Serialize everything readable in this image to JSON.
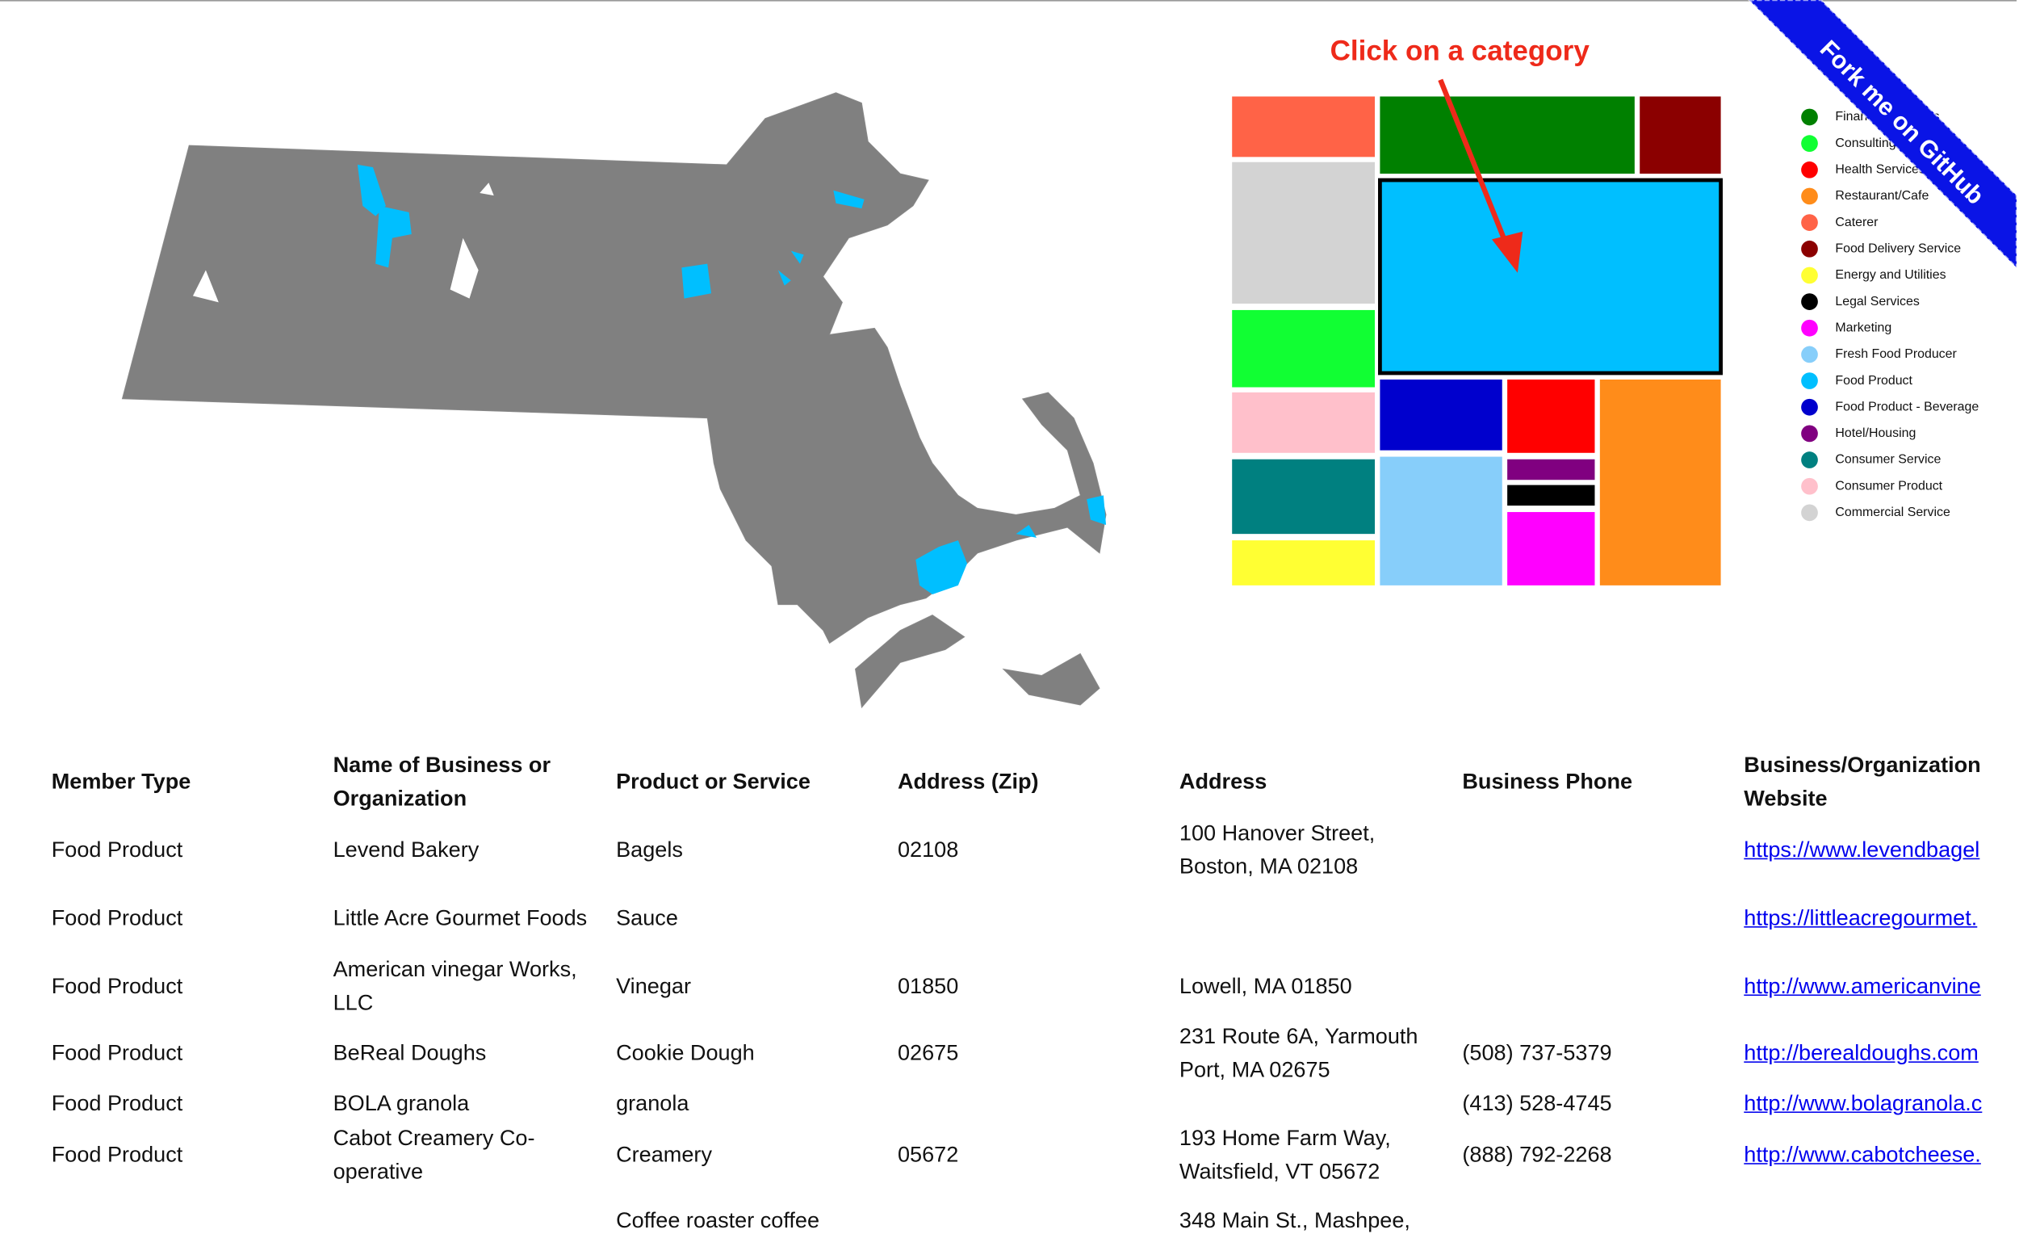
{
  "annotation": "Click on a category",
  "ribbon": "Fork me on GitHub",
  "legend": [
    {
      "label": "Financial Services",
      "color": "#008000"
    },
    {
      "label": "Consulting",
      "color": "#11ff33"
    },
    {
      "label": "Health Services",
      "color": "#ff0000"
    },
    {
      "label": "Restaurant/Cafe",
      "color": "#ff8c1a"
    },
    {
      "label": "Caterer",
      "color": "#ff6347"
    },
    {
      "label": "Food Delivery Service",
      "color": "#8b0000"
    },
    {
      "label": "Energy and Utilities",
      "color": "#ffff33"
    },
    {
      "label": "Legal Services",
      "color": "#000000"
    },
    {
      "label": "Marketing",
      "color": "#ff00ff"
    },
    {
      "label": "Fresh Food Producer",
      "color": "#87cefa"
    },
    {
      "label": "Food Product",
      "color": "#00bfff"
    },
    {
      "label": "Food Product - Beverage",
      "color": "#0000cd"
    },
    {
      "label": "Hotel/Housing",
      "color": "#800080"
    },
    {
      "label": "Consumer Service",
      "color": "#008080"
    },
    {
      "label": "Consumer Product",
      "color": "#ffc0cb"
    },
    {
      "label": "Commercial Service",
      "color": "#d3d3d3"
    }
  ],
  "table": {
    "headers": [
      "Member Type",
      "Name of Business or Organization",
      "Product or Service",
      "Address (Zip)",
      "Address",
      "Business Phone",
      "Business/Organization Website"
    ],
    "rows": [
      [
        "Food Product",
        "Levend Bakery",
        "Bagels",
        "02108",
        "100 Hanover Street, Boston, MA 02108",
        null,
        "https://www.levendbagel"
      ],
      [
        "Food Product",
        "Little Acre Gourmet Foods",
        "Sauce",
        null,
        null,
        null,
        "https://littleacregourmet."
      ],
      [
        "Food Product",
        "American vinegar Works, LLC",
        "Vinegar",
        "01850",
        "Lowell, MA 01850",
        null,
        "http://www.americanvine"
      ],
      [
        "Food Product",
        "BeReal Doughs",
        "Cookie Dough",
        "02675",
        "231 Route 6A, Yarmouth Port, MA 02675",
        "(508) 737-5379",
        "http://berealdoughs.com"
      ],
      [
        "Food Product",
        "BOLA granola",
        "granola",
        null,
        null,
        "(413) 528-4745",
        "http://www.bolagranola.c"
      ],
      [
        "Food Product",
        "Cabot Creamery Co-operative",
        "Creamery",
        "05672",
        "193 Home Farm Way, Waitsfield, VT 05672",
        "(888) 792-2268",
        "http://www.cabotcheese."
      ],
      [
        null,
        null,
        "Coffee roaster coffee",
        null,
        "348 Main St., Mashpee,",
        null,
        null
      ]
    ]
  }
}
